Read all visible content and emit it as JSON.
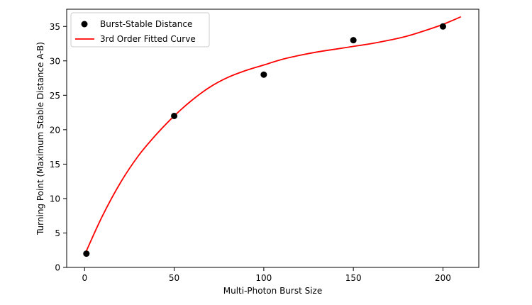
{
  "chart_data": {
    "type": "scatter",
    "xlabel": "Multi-Photon Burst Size",
    "ylabel": "Turning Point (Maximum Stable Distance A-B)",
    "xlim": [
      -10,
      220
    ],
    "ylim": [
      0,
      37.5
    ],
    "xticks": [
      0,
      50,
      100,
      150,
      200
    ],
    "yticks": [
      0,
      5,
      10,
      15,
      20,
      25,
      30,
      35
    ],
    "grid": false,
    "legend_position": "upper-left",
    "series": [
      {
        "name": "Burst-Stable Distance",
        "kind": "scatter",
        "color": "#000000",
        "x": [
          1,
          50,
          100,
          150,
          200
        ],
        "y": [
          2,
          22,
          28,
          33,
          35
        ]
      },
      {
        "name": "3rd Order Fitted Curve",
        "kind": "line",
        "color": "#ff0000",
        "x": [
          1,
          10,
          20,
          30,
          40,
          50,
          60,
          70,
          80,
          90,
          100,
          110,
          120,
          130,
          140,
          150,
          160,
          170,
          180,
          190,
          200,
          210
        ],
        "y": [
          2.4,
          7.5,
          12.3,
          16.2,
          19.3,
          22.0,
          24.3,
          26.2,
          27.6,
          28.6,
          29.4,
          30.2,
          30.8,
          31.3,
          31.7,
          32.1,
          32.5,
          33.0,
          33.6,
          34.4,
          35.3,
          36.4
        ]
      }
    ]
  }
}
